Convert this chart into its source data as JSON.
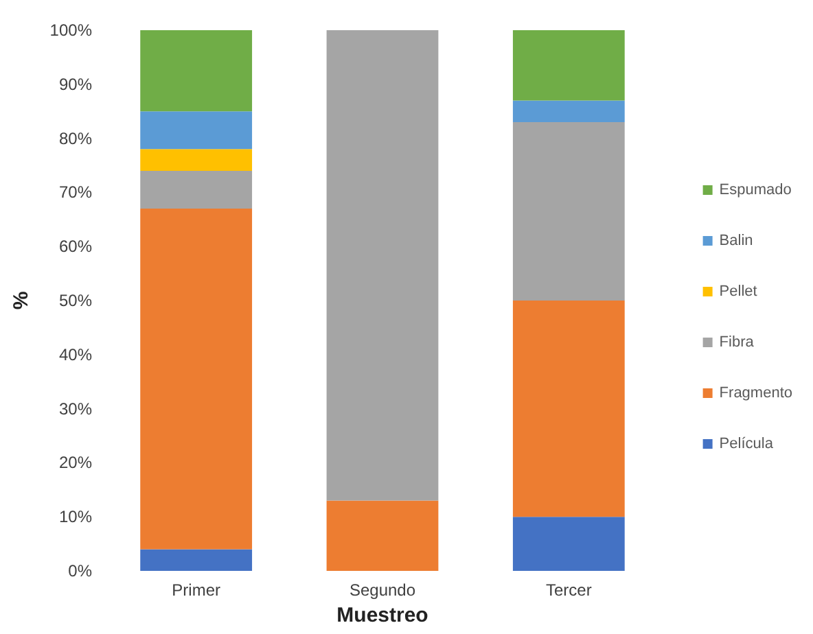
{
  "chart_data": {
    "type": "bar",
    "stacked": true,
    "xlabel": "Muestreo",
    "ylabel": "%",
    "categories": [
      "Primer",
      "Segundo",
      "Tercer"
    ],
    "series": [
      {
        "name": "Película",
        "color": "#4472c4",
        "values": [
          4,
          0,
          10
        ]
      },
      {
        "name": "Fragmento",
        "color": "#ed7d31",
        "values": [
          63,
          13,
          40
        ]
      },
      {
        "name": "Fibra",
        "color": "#a5a5a5",
        "values": [
          7,
          87,
          33
        ]
      },
      {
        "name": "Pellet",
        "color": "#ffc000",
        "values": [
          4,
          0,
          0
        ]
      },
      {
        "name": "Balin",
        "color": "#5b9bd5",
        "values": [
          7,
          0,
          4
        ]
      },
      {
        "name": "Espumado",
        "color": "#70ad47",
        "values": [
          15,
          0,
          13
        ]
      }
    ],
    "ylim": [
      0,
      100
    ],
    "yticks": [
      {
        "value": 0,
        "label": "0%"
      },
      {
        "value": 10,
        "label": "10%"
      },
      {
        "value": 20,
        "label": "20%"
      },
      {
        "value": 30,
        "label": "30%"
      },
      {
        "value": 40,
        "label": "40%"
      },
      {
        "value": 50,
        "label": "50%"
      },
      {
        "value": 60,
        "label": "60%"
      },
      {
        "value": 70,
        "label": "70%"
      },
      {
        "value": 80,
        "label": "80%"
      },
      {
        "value": 90,
        "label": "90%"
      },
      {
        "value": 100,
        "label": "100%"
      }
    ],
    "grid": false,
    "legend": "right"
  }
}
